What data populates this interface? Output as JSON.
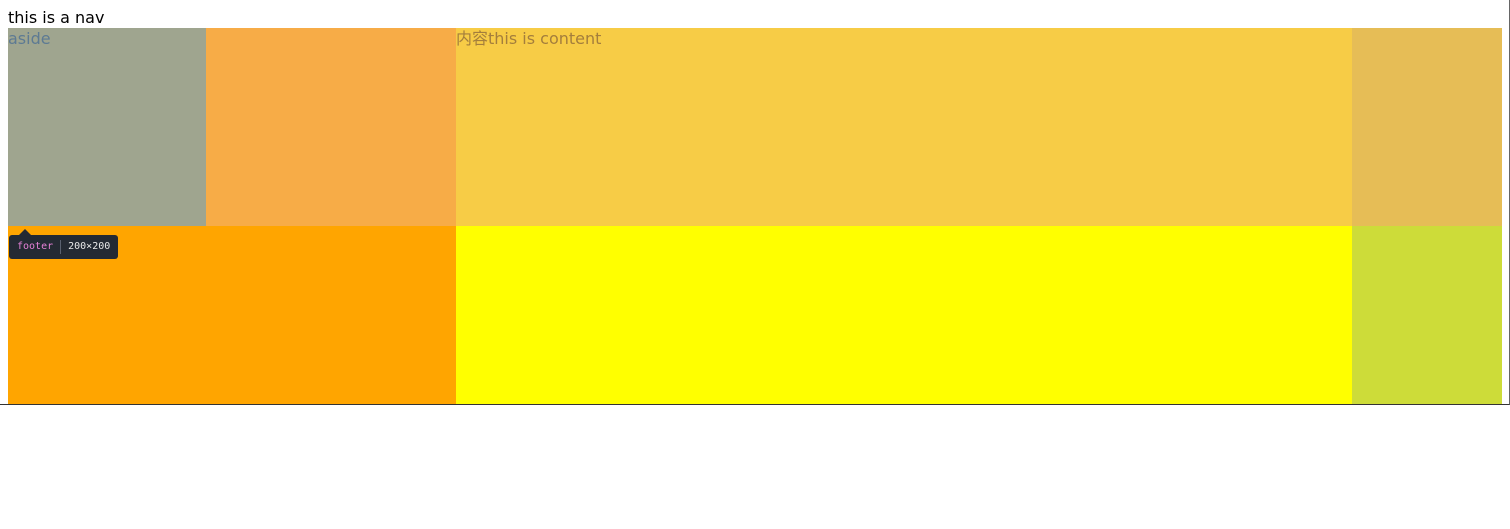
{
  "nav": {
    "text": "this is a nav"
  },
  "aside": {
    "text": "aside"
  },
  "content": {
    "text": "内容this is content"
  },
  "tooltip": {
    "tag": "footer",
    "size": "200×200"
  },
  "colors": {
    "aside": "#9fa58f",
    "orange_mid": "#f7ac47",
    "content": "#f7cc46",
    "right_top": "#e6bd56",
    "footer": "#ffa500",
    "yellow_bottom": "#ffff00",
    "right_bottom": "#cddc39",
    "tooltip_bg": "#242a33",
    "tooltip_tag": "#e681d7"
  }
}
